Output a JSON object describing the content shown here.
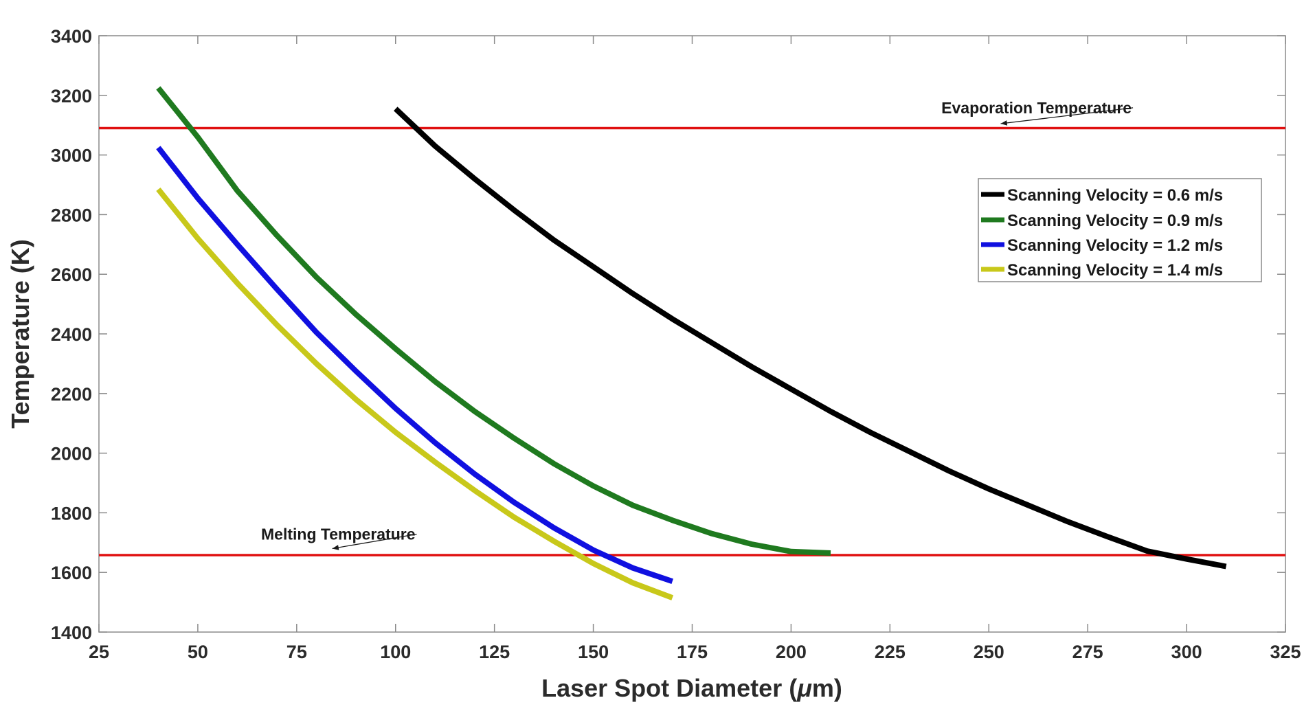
{
  "chart_data": {
    "type": "line",
    "xlabel_main": "Laser Spot Diameter (",
    "xlabel_mu": "μ",
    "xlabel_unit": "m)",
    "ylabel": "Temperature (K)",
    "xlim": [
      25,
      325
    ],
    "ylim": [
      1400,
      3400
    ],
    "xticks": [
      25,
      50,
      75,
      100,
      125,
      150,
      175,
      200,
      225,
      250,
      275,
      300,
      325
    ],
    "yticks": [
      1400,
      1600,
      1800,
      2000,
      2200,
      2400,
      2600,
      2800,
      3000,
      3200,
      3400
    ],
    "series": [
      {
        "name": "Scanning Velocity = 0.6 m/s",
        "color": "#000000",
        "x": [
          100,
          110,
          120,
          130,
          140,
          150,
          160,
          170,
          180,
          190,
          200,
          210,
          220,
          230,
          240,
          250,
          260,
          270,
          280,
          290,
          300,
          310
        ],
        "y": [
          3155,
          3030,
          2920,
          2815,
          2715,
          2625,
          2535,
          2450,
          2370,
          2290,
          2215,
          2140,
          2070,
          2005,
          1940,
          1880,
          1825,
          1770,
          1720,
          1672,
          1645,
          1620
        ]
      },
      {
        "name": "Scanning Velocity = 0.9 m/s",
        "color": "#1f7a1f",
        "x": [
          40,
          50,
          60,
          70,
          80,
          90,
          100,
          110,
          120,
          130,
          140,
          150,
          160,
          170,
          180,
          190,
          200,
          210
        ],
        "y": [
          3225,
          3060,
          2880,
          2730,
          2590,
          2465,
          2350,
          2240,
          2140,
          2050,
          1965,
          1890,
          1825,
          1775,
          1730,
          1695,
          1670,
          1665
        ]
      },
      {
        "name": "Scanning Velocity = 1.2 m/s",
        "color": "#1010e0",
        "x": [
          40,
          50,
          60,
          70,
          80,
          90,
          100,
          110,
          120,
          130,
          140,
          150,
          160,
          170
        ],
        "y": [
          3025,
          2855,
          2700,
          2550,
          2405,
          2275,
          2150,
          2035,
          1930,
          1835,
          1750,
          1675,
          1615,
          1570
        ]
      },
      {
        "name": "Scanning Velocity = 1.4 m/s",
        "color": "#c8c81a",
        "x": [
          40,
          50,
          60,
          70,
          80,
          90,
          100,
          110,
          120,
          130,
          140,
          150,
          160,
          170
        ],
        "y": [
          2885,
          2720,
          2570,
          2430,
          2300,
          2180,
          2070,
          1970,
          1875,
          1785,
          1705,
          1630,
          1565,
          1515
        ]
      }
    ],
    "reference_lines": [
      {
        "name": "Evaporation Temperature",
        "y": 3090,
        "color": "#e01010"
      },
      {
        "name": "Melting Temperature",
        "y": 1658,
        "color": "#e01010"
      }
    ],
    "annotations": [
      {
        "text": "Evaporation Temperature",
        "x": 238,
        "y": 3140,
        "arrow_to": [
          253,
          3105
        ]
      },
      {
        "text": "Melting Temperature",
        "x": 66,
        "y": 1710,
        "arrow_to": [
          84,
          1680
        ]
      }
    ],
    "legend_position": "upper-right"
  }
}
